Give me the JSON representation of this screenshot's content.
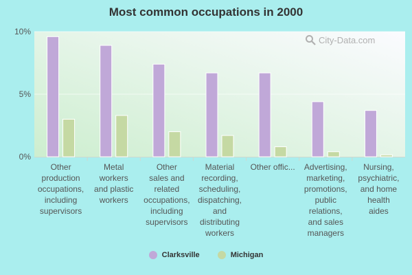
{
  "watermark": {
    "text": "City-Data.com",
    "icon": "search-magnifier-icon"
  },
  "colors": {
    "background": "#aaeeee",
    "series_clarksville": "#c0a8d8",
    "series_michigan": "#c5d9a3"
  },
  "chart_data": {
    "type": "bar",
    "title": "Most common occupations in 2000",
    "xlabel": "",
    "ylabel": "",
    "ylim": [
      0,
      10
    ],
    "yticks": [
      {
        "value": 0,
        "label": "0%"
      },
      {
        "value": 5,
        "label": "5%"
      },
      {
        "value": 10,
        "label": "10%"
      }
    ],
    "grid": false,
    "legend_position": "bottom-center",
    "categories": [
      [
        "Other",
        "production",
        "occupations,",
        "including",
        "supervisors"
      ],
      [
        "Metal",
        "workers",
        "and plastic",
        "workers"
      ],
      [
        "Other",
        "sales and",
        "related",
        "occupations,",
        "including",
        "supervisors"
      ],
      [
        "Material",
        "recording,",
        "scheduling,",
        "dispatching,",
        "and",
        "distributing",
        "workers"
      ],
      [
        "Other offic..."
      ],
      [
        "Advertising,",
        "marketing,",
        "promotions,",
        "public",
        "relations,",
        "and sales",
        "managers"
      ],
      [
        "Nursing,",
        "psychiatric,",
        "and home",
        "health",
        "aides"
      ]
    ],
    "series": [
      {
        "name": "Clarksville",
        "color": "#c0a8d8",
        "values": [
          9.6,
          8.9,
          7.4,
          6.7,
          6.7,
          4.4,
          3.7
        ]
      },
      {
        "name": "Michigan",
        "color": "#c5d9a3",
        "values": [
          3.0,
          3.3,
          2.0,
          1.7,
          0.8,
          0.4,
          0.15
        ]
      }
    ]
  }
}
